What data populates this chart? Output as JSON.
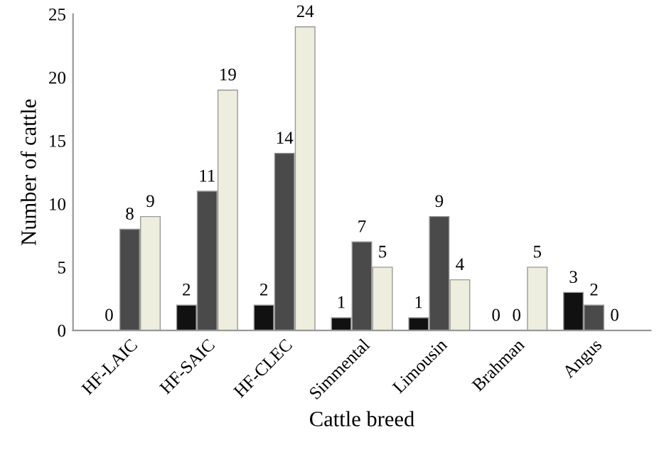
{
  "chart_data": {
    "type": "bar",
    "xlabel": "Cattle breed",
    "ylabel": "Number of cattle",
    "categories": [
      "HF-LAIC",
      "HF-SAIC",
      "HF-CLEC",
      "Simmental",
      "Limousin",
      "Brahman",
      "Angus"
    ],
    "series": [
      {
        "color": "#111111",
        "values": [
          0,
          2,
          2,
          1,
          1,
          0,
          3
        ]
      },
      {
        "color": "#4a4a4a",
        "values": [
          8,
          11,
          14,
          7,
          9,
          0,
          2
        ]
      },
      {
        "color": "#eeeede",
        "values": [
          9,
          19,
          24,
          5,
          4,
          5,
          0
        ]
      }
    ],
    "ylim": [
      0,
      25
    ],
    "yticks": [
      0,
      5,
      10,
      15,
      20,
      25
    ],
    "data_labels": true,
    "grid": false,
    "legend": false
  }
}
